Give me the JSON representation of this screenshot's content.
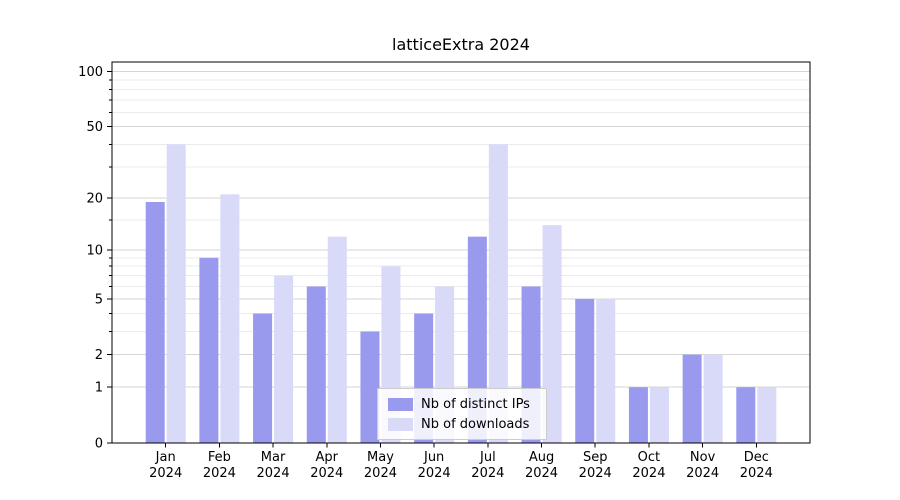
{
  "title": "latticeExtra 2024",
  "colors": {
    "distinct_ips": "#9999ee",
    "downloads": "#d9d9f8",
    "grid_major": "#d6d6d6",
    "grid_minor": "#ebebeb",
    "axis": "#000000",
    "background": "#ffffff",
    "legend_border": "#cccccc"
  },
  "chart_data": {
    "type": "bar",
    "title": "latticeExtra 2024",
    "categories": [
      "Jan",
      "Feb",
      "Mar",
      "Apr",
      "May",
      "Jun",
      "Jul",
      "Aug",
      "Sep",
      "Oct",
      "Nov",
      "Dec"
    ],
    "category_year": "2024",
    "series": [
      {
        "name": "Nb of distinct IPs",
        "values": [
          19,
          9,
          4,
          6,
          3,
          4,
          12,
          6,
          5,
          1,
          2,
          1
        ]
      },
      {
        "name": "Nb of downloads",
        "values": [
          40,
          21,
          7,
          12,
          8,
          6,
          40,
          14,
          5,
          1,
          2,
          1
        ]
      }
    ],
    "y_scale": "log10(value+1)",
    "y_ticks": [
      0,
      1,
      2,
      5,
      10,
      20,
      50,
      100
    ],
    "y_minor_ticks": [
      3,
      4,
      6,
      7,
      8,
      9,
      15,
      30,
      40,
      60,
      70,
      80,
      90
    ],
    "ylim": [
      0,
      113
    ],
    "xlabel": "",
    "ylabel": "",
    "grid": true,
    "legend_position": "lower center"
  }
}
